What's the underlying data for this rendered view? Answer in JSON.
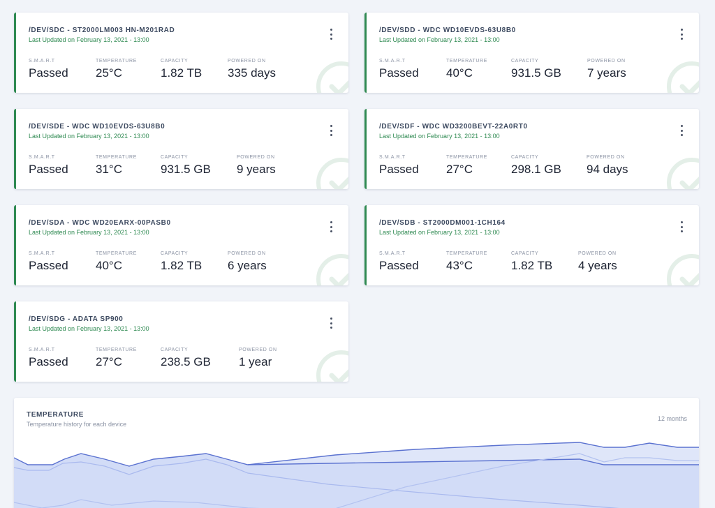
{
  "cards": [
    {
      "title": "/DEV/SDC - ST2000LM003 HN-M201RAD",
      "updated": "Last Updated on February 13, 2021 - 13:00",
      "stats": [
        {
          "label": "S.M.A.R.T",
          "value": "Passed"
        },
        {
          "label": "Temperature",
          "value": "25°C"
        },
        {
          "label": "Capacity",
          "value": "1.82 TB"
        },
        {
          "label": "Powered On",
          "value": "335 days"
        }
      ]
    },
    {
      "title": "/DEV/SDD - WDC WD10EVDS-63U8B0",
      "updated": "Last Updated on February 13, 2021 - 13:00",
      "stats": [
        {
          "label": "S.M.A.R.T",
          "value": "Passed"
        },
        {
          "label": "Temperature",
          "value": "40°C"
        },
        {
          "label": "Capacity",
          "value": "931.5 GB"
        },
        {
          "label": "Powered On",
          "value": "7 years"
        }
      ]
    },
    {
      "title": "/DEV/SDE - WDC WD10EVDS-63U8B0",
      "updated": "Last Updated on February 13, 2021 - 13:00",
      "stats": [
        {
          "label": "S.M.A.R.T",
          "value": "Passed"
        },
        {
          "label": "Temperature",
          "value": "31°C"
        },
        {
          "label": "Capacity",
          "value": "931.5 GB"
        },
        {
          "label": "Powered On",
          "value": "9 years"
        }
      ]
    },
    {
      "title": "/DEV/SDF - WDC WD3200BEVT-22A0RT0",
      "updated": "Last Updated on February 13, 2021 - 13:00",
      "stats": [
        {
          "label": "S.M.A.R.T",
          "value": "Passed"
        },
        {
          "label": "Temperature",
          "value": "27°C"
        },
        {
          "label": "Capacity",
          "value": "298.1 GB"
        },
        {
          "label": "Powered On",
          "value": "94 days"
        }
      ]
    },
    {
      "title": "/DEV/SDA - WDC WD20EARX-00PASB0",
      "updated": "Last Updated on February 13, 2021 - 13:00",
      "stats": [
        {
          "label": "S.M.A.R.T",
          "value": "Passed"
        },
        {
          "label": "Temperature",
          "value": "40°C"
        },
        {
          "label": "Capacity",
          "value": "1.82 TB"
        },
        {
          "label": "Powered On",
          "value": "6 years"
        }
      ]
    },
    {
      "title": "/DEV/SDB - ST2000DM001-1CH164",
      "updated": "Last Updated on February 13, 2021 - 13:00",
      "stats": [
        {
          "label": "S.M.A.R.T",
          "value": "Passed"
        },
        {
          "label": "Temperature",
          "value": "43°C"
        },
        {
          "label": "Capacity",
          "value": "1.82 TB"
        },
        {
          "label": "Powered On",
          "value": "4 years"
        }
      ]
    },
    {
      "title": "/DEV/SDG - ADATA SP900",
      "updated": "Last Updated on February 13, 2021 - 13:00",
      "stats": [
        {
          "label": "S.M.A.R.T",
          "value": "Passed"
        },
        {
          "label": "Temperature",
          "value": "27°C"
        },
        {
          "label": "Capacity",
          "value": "238.5 GB"
        },
        {
          "label": "Powered On",
          "value": "1 year"
        }
      ]
    }
  ],
  "temperature": {
    "title": "TEMPERATURE",
    "subtitle": "Temperature history for each device",
    "range": "12 months"
  },
  "colors": {
    "accent_green": "#2f8a52",
    "check_ring": "#e4efe8",
    "series_line": "#5b72d0",
    "series_fill": "#c4d1f4"
  },
  "icons": {
    "menu": "vertical-dots-icon",
    "status": "check-circle-icon"
  }
}
